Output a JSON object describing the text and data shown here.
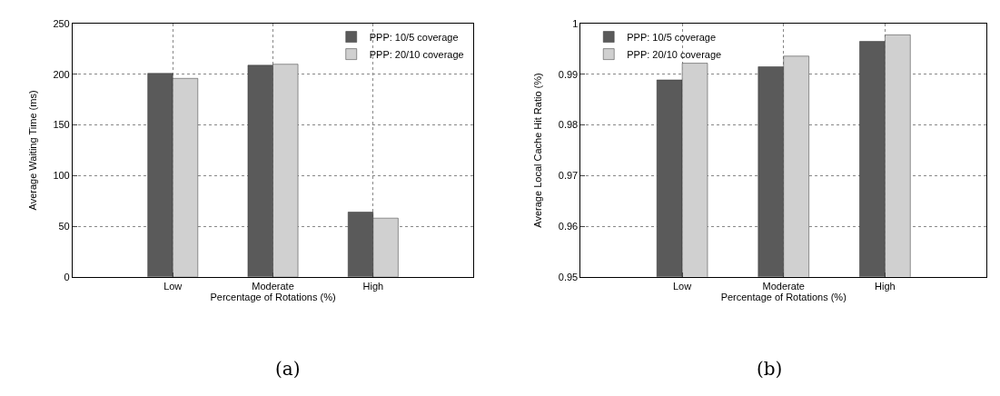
{
  "chart_data": [
    {
      "type": "bar",
      "xlabel": "Percentage of Rotations (%)",
      "ylabel": "Average Waiting Time (ms)",
      "categories": [
        "Low",
        "Moderate",
        "High"
      ],
      "series": [
        {
          "name": "PPP: 10/5 coverage",
          "color": "#5a5a5a",
          "values": [
            201,
            209,
            64
          ]
        },
        {
          "name": "PPP: 20/10 coverage",
          "color": "#d0d0d0",
          "values": [
            196,
            210,
            58
          ]
        }
      ],
      "ylim": [
        0,
        250
      ],
      "yticks": [
        0,
        50,
        100,
        150,
        200,
        250
      ],
      "grid": true,
      "legend": "top right",
      "annotations": [
        "(a)"
      ]
    },
    {
      "type": "bar",
      "xlabel": "Percentage of Rotations (%)",
      "ylabel": "Average Local Cache Hit Ratio (%)",
      "categories": [
        "Low",
        "Moderate",
        "High"
      ],
      "series": [
        {
          "name": "PPP: 10/5 coverage",
          "color": "#5a5a5a",
          "values": [
            0.9889,
            0.9915,
            0.9965
          ]
        },
        {
          "name": "PPP: 20/10 coverage",
          "color": "#d0d0d0",
          "values": [
            0.9922,
            0.9936,
            0.9978
          ]
        }
      ],
      "ylim": [
        0.95,
        1
      ],
      "yticks": [
        0.95,
        0.96,
        0.97,
        0.98,
        0.99,
        1
      ],
      "grid": true,
      "legend": "top left",
      "annotations": [
        "(b)"
      ]
    }
  ]
}
